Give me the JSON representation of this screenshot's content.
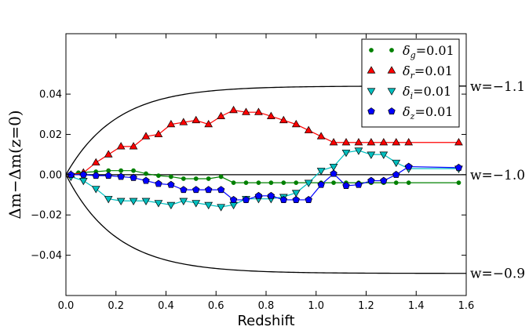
{
  "chart_data": {
    "type": "line",
    "title": "",
    "xlabel": "Redshift",
    "ylabel": "Δm−Δm(z=0)",
    "xlim": [
      0.0,
      1.6
    ],
    "ylim": [
      -0.06,
      0.07
    ],
    "xticks": [
      0.0,
      0.2,
      0.4,
      0.6,
      0.8,
      1.0,
      1.2,
      1.4,
      1.6
    ],
    "xtick_labels": [
      "0.0",
      "0.2",
      "0.4",
      "0.6",
      "0.8",
      "1.0",
      "1.2",
      "1.4",
      "1.6"
    ],
    "yticks": [
      -0.04,
      -0.02,
      0.0,
      0.02,
      0.04
    ],
    "ytick_labels": [
      "−0.04",
      "−0.02",
      "0.00",
      "0.02",
      "0.04"
    ],
    "grid": false,
    "legend_position": "top-right",
    "reference_curves": [
      {
        "label": "w=−1.1",
        "y_at_zmax": 0.044
      },
      {
        "label": "w=−1.0",
        "y_at_zmax": 0.0
      },
      {
        "label": "w=−0.9",
        "y_at_zmax": -0.049
      }
    ],
    "series": [
      {
        "name": "g",
        "sym": "δ",
        "sub": "g",
        "value": "=0.01",
        "color": "#008000",
        "marker": "dot",
        "x": [
          0.02,
          0.05,
          0.12,
          0.17,
          0.22,
          0.27,
          0.32,
          0.37,
          0.42,
          0.47,
          0.52,
          0.57,
          0.62,
          0.67,
          0.72,
          0.77,
          0.82,
          0.87,
          0.92,
          0.97,
          1.02,
          1.07,
          1.12,
          1.17,
          1.22,
          1.27,
          1.32,
          1.37,
          1.57
        ],
        "y": [
          0.0,
          0.001,
          0.0015,
          0.002,
          0.002,
          0.002,
          0.0005,
          -0.0005,
          -0.001,
          -0.002,
          -0.002,
          -0.002,
          -0.001,
          -0.004,
          -0.004,
          -0.004,
          -0.004,
          -0.004,
          -0.004,
          -0.004,
          -0.004,
          -0.004,
          -0.004,
          -0.004,
          -0.004,
          -0.004,
          -0.004,
          -0.004,
          -0.004
        ]
      },
      {
        "name": "r",
        "sym": "δ",
        "sub": "r",
        "value": "=0.01",
        "color": "#ff0000",
        "marker": "triangle-up",
        "x": [
          0.02,
          0.07,
          0.12,
          0.17,
          0.22,
          0.27,
          0.32,
          0.37,
          0.42,
          0.47,
          0.52,
          0.57,
          0.62,
          0.67,
          0.72,
          0.77,
          0.82,
          0.87,
          0.92,
          0.97,
          1.02,
          1.07,
          1.12,
          1.17,
          1.22,
          1.27,
          1.32,
          1.37,
          1.57
        ],
        "y": [
          0.0,
          0.001,
          0.006,
          0.01,
          0.014,
          0.014,
          0.019,
          0.02,
          0.025,
          0.026,
          0.027,
          0.025,
          0.029,
          0.032,
          0.031,
          0.031,
          0.029,
          0.027,
          0.025,
          0.022,
          0.019,
          0.016,
          0.016,
          0.016,
          0.016,
          0.016,
          0.016,
          0.016,
          0.016
        ]
      },
      {
        "name": "i",
        "sym": "δ",
        "sub": "i",
        "value": "=0.01",
        "color": "#00bfbf",
        "marker": "triangle-down",
        "x": [
          0.02,
          0.07,
          0.12,
          0.17,
          0.22,
          0.27,
          0.32,
          0.37,
          0.42,
          0.47,
          0.52,
          0.57,
          0.62,
          0.67,
          0.72,
          0.77,
          0.82,
          0.87,
          0.92,
          0.97,
          1.02,
          1.07,
          1.12,
          1.17,
          1.22,
          1.27,
          1.32,
          1.37,
          1.57
        ],
        "y": [
          -0.001,
          -0.003,
          -0.007,
          -0.012,
          -0.013,
          -0.013,
          -0.013,
          -0.014,
          -0.015,
          -0.013,
          -0.014,
          -0.015,
          -0.016,
          -0.015,
          -0.012,
          -0.012,
          -0.012,
          -0.011,
          -0.009,
          -0.004,
          0.002,
          0.004,
          0.011,
          0.012,
          0.01,
          0.01,
          0.006,
          0.003,
          0.003
        ]
      },
      {
        "name": "z",
        "sym": "δ",
        "sub": "z",
        "value": "=0.01",
        "color": "#0000ff",
        "marker": "pentagon",
        "x": [
          0.02,
          0.07,
          0.12,
          0.17,
          0.22,
          0.27,
          0.32,
          0.37,
          0.42,
          0.47,
          0.52,
          0.57,
          0.62,
          0.67,
          0.72,
          0.77,
          0.82,
          0.87,
          0.92,
          0.97,
          1.02,
          1.07,
          1.12,
          1.17,
          1.22,
          1.27,
          1.32,
          1.37,
          1.57
        ],
        "y": [
          0.0,
          0.0,
          -0.0005,
          -0.0005,
          -0.001,
          -0.0015,
          -0.003,
          -0.0045,
          -0.005,
          -0.0075,
          -0.0075,
          -0.0075,
          -0.0075,
          -0.0125,
          -0.0125,
          -0.0105,
          -0.0105,
          -0.0125,
          -0.0125,
          -0.0125,
          -0.005,
          0.0005,
          -0.0055,
          -0.005,
          -0.003,
          -0.003,
          0.0,
          0.004,
          0.0035
        ]
      }
    ]
  }
}
